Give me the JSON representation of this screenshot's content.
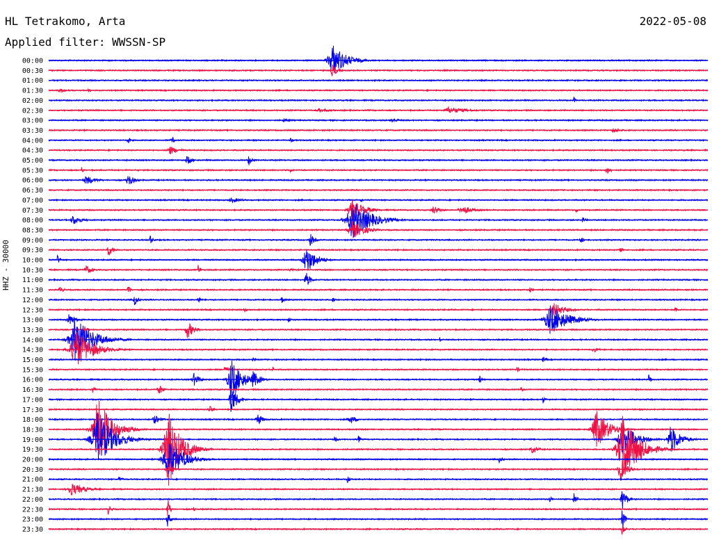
{
  "header": {
    "station": "HL Tetrakomo, Arta",
    "filter": "Applied filter: WWSSN-SP",
    "date": "2022-05-08"
  },
  "chart_data": {
    "type": "helicorder",
    "ylabel": "HHZ - 30000",
    "row_labels": [
      "00:00",
      "00:30",
      "01:00",
      "01:30",
      "02:00",
      "02:30",
      "03:00",
      "03:30",
      "04:00",
      "04:30",
      "05:00",
      "05:30",
      "06:00",
      "06:30",
      "07:00",
      "07:30",
      "08:00",
      "08:30",
      "09:00",
      "09:30",
      "10:00",
      "10:30",
      "11:00",
      "11:30",
      "12:00",
      "12:30",
      "13:00",
      "13:30",
      "14:00",
      "14:30",
      "15:00",
      "15:30",
      "16:00",
      "16:30",
      "17:00",
      "17:30",
      "18:00",
      "18:30",
      "19:00",
      "19:30",
      "20:00",
      "20:30",
      "21:00",
      "21:30",
      "22:00",
      "22:30",
      "23:00",
      "23:30"
    ],
    "colors": {
      "even_rows": "#0000ee",
      "odd_rows": "#ee1144"
    },
    "x_range_minutes": [
      0,
      30
    ],
    "events": [
      {
        "row": 0,
        "t": 12.9,
        "amp": 26,
        "dur": 1.6
      },
      {
        "row": 1,
        "t": 12.9,
        "amp": 10,
        "dur": 0.6
      },
      {
        "row": 3,
        "t": 0.5,
        "amp": 5,
        "dur": 0.6
      },
      {
        "row": 3,
        "t": 1.8,
        "amp": 3,
        "dur": 0.4
      },
      {
        "row": 4,
        "t": 23.9,
        "amp": 6,
        "dur": 0.2
      },
      {
        "row": 5,
        "t": 18.2,
        "amp": 5,
        "dur": 2.5
      },
      {
        "row": 5,
        "t": 12.3,
        "amp": 3,
        "dur": 2.0
      },
      {
        "row": 6,
        "t": 15.6,
        "amp": 4,
        "dur": 1.0
      },
      {
        "row": 6,
        "t": 10.7,
        "amp": 3,
        "dur": 1.0
      },
      {
        "row": 7,
        "t": 25.7,
        "amp": 4,
        "dur": 1.0
      },
      {
        "row": 8,
        "t": 3.6,
        "amp": 6,
        "dur": 0.4
      },
      {
        "row": 8,
        "t": 5.6,
        "amp": 6,
        "dur": 0.4
      },
      {
        "row": 8,
        "t": 11.0,
        "amp": 5,
        "dur": 0.3
      },
      {
        "row": 9,
        "t": 5.5,
        "amp": 7,
        "dur": 1.0
      },
      {
        "row": 10,
        "t": 6.3,
        "amp": 8,
        "dur": 0.6
      },
      {
        "row": 10,
        "t": 9.1,
        "amp": 9,
        "dur": 0.4
      },
      {
        "row": 11,
        "t": 1.5,
        "amp": 5,
        "dur": 0.3
      },
      {
        "row": 11,
        "t": 11.0,
        "amp": 4,
        "dur": 0.3
      },
      {
        "row": 11,
        "t": 25.4,
        "amp": 7,
        "dur": 0.5
      },
      {
        "row": 12,
        "t": 1.7,
        "amp": 7,
        "dur": 1.2
      },
      {
        "row": 12,
        "t": 3.6,
        "amp": 10,
        "dur": 0.7
      },
      {
        "row": 14,
        "t": 8.3,
        "amp": 4,
        "dur": 1.4
      },
      {
        "row": 14,
        "t": 14.2,
        "amp": 4,
        "dur": 0.3
      },
      {
        "row": 15,
        "t": 13.8,
        "amp": 16,
        "dur": 1.5
      },
      {
        "row": 15,
        "t": 17.5,
        "amp": 6,
        "dur": 1.0
      },
      {
        "row": 15,
        "t": 18.8,
        "amp": 7,
        "dur": 1.4
      },
      {
        "row": 15,
        "t": 24.0,
        "amp": 5,
        "dur": 0.3
      },
      {
        "row": 16,
        "t": 13.8,
        "amp": 30,
        "dur": 2.2
      },
      {
        "row": 16,
        "t": 1.1,
        "amp": 8,
        "dur": 1.0
      },
      {
        "row": 16,
        "t": 24.3,
        "amp": 5,
        "dur": 0.4
      },
      {
        "row": 17,
        "t": 13.8,
        "amp": 14,
        "dur": 1.5
      },
      {
        "row": 18,
        "t": 4.6,
        "amp": 8,
        "dur": 0.4
      },
      {
        "row": 18,
        "t": 11.9,
        "amp": 10,
        "dur": 0.5
      },
      {
        "row": 18,
        "t": 24.2,
        "amp": 6,
        "dur": 0.4
      },
      {
        "row": 19,
        "t": 2.7,
        "amp": 10,
        "dur": 0.6
      },
      {
        "row": 19,
        "t": 26.0,
        "amp": 6,
        "dur": 0.3
      },
      {
        "row": 20,
        "t": 11.7,
        "amp": 22,
        "dur": 1.2
      },
      {
        "row": 20,
        "t": 0.4,
        "amp": 8,
        "dur": 0.3
      },
      {
        "row": 21,
        "t": 1.7,
        "amp": 7,
        "dur": 0.8
      },
      {
        "row": 21,
        "t": 6.8,
        "amp": 8,
        "dur": 0.3
      },
      {
        "row": 21,
        "t": 11.0,
        "amp": 5,
        "dur": 0.3
      },
      {
        "row": 22,
        "t": 11.7,
        "amp": 14,
        "dur": 0.5
      },
      {
        "row": 23,
        "t": 0.5,
        "amp": 5,
        "dur": 0.6
      },
      {
        "row": 23,
        "t": 3.6,
        "amp": 10,
        "dur": 0.3
      },
      {
        "row": 23,
        "t": 21.9,
        "amp": 6,
        "dur": 0.3
      },
      {
        "row": 24,
        "t": 3.9,
        "amp": 10,
        "dur": 0.4
      },
      {
        "row": 24,
        "t": 6.8,
        "amp": 6,
        "dur": 0.4
      },
      {
        "row": 24,
        "t": 10.6,
        "amp": 6,
        "dur": 0.4
      },
      {
        "row": 24,
        "t": 12.9,
        "amp": 5,
        "dur": 0.3
      },
      {
        "row": 25,
        "t": 8.9,
        "amp": 5,
        "dur": 0.3
      },
      {
        "row": 25,
        "t": 23.0,
        "amp": 10,
        "dur": 1.4
      },
      {
        "row": 25,
        "t": 28.5,
        "amp": 5,
        "dur": 0.4
      },
      {
        "row": 26,
        "t": 0.9,
        "amp": 9,
        "dur": 0.9
      },
      {
        "row": 26,
        "t": 22.8,
        "amp": 22,
        "dur": 2.2
      },
      {
        "row": 26,
        "t": 10.9,
        "amp": 6,
        "dur": 0.3
      },
      {
        "row": 27,
        "t": 6.3,
        "amp": 14,
        "dur": 0.8
      },
      {
        "row": 27,
        "t": 1.6,
        "amp": 5,
        "dur": 0.6
      },
      {
        "row": 28,
        "t": 1.2,
        "amp": 34,
        "dur": 2.2
      },
      {
        "row": 28,
        "t": 17.8,
        "amp": 6,
        "dur": 0.2
      },
      {
        "row": 29,
        "t": 1.2,
        "amp": 30,
        "dur": 2.0
      },
      {
        "row": 29,
        "t": 24.8,
        "amp": 4,
        "dur": 0.8
      },
      {
        "row": 30,
        "t": 9.3,
        "amp": 5,
        "dur": 0.3
      },
      {
        "row": 30,
        "t": 22.5,
        "amp": 5,
        "dur": 0.4
      },
      {
        "row": 31,
        "t": 8.0,
        "amp": 8,
        "dur": 0.4
      },
      {
        "row": 31,
        "t": 10.2,
        "amp": 5,
        "dur": 0.3
      },
      {
        "row": 31,
        "t": 21.3,
        "amp": 5,
        "dur": 0.4
      },
      {
        "row": 32,
        "t": 6.6,
        "amp": 10,
        "dur": 0.7
      },
      {
        "row": 32,
        "t": 8.3,
        "amp": 30,
        "dur": 1.4
      },
      {
        "row": 32,
        "t": 9.3,
        "amp": 14,
        "dur": 0.8
      },
      {
        "row": 32,
        "t": 19.6,
        "amp": 7,
        "dur": 0.3
      },
      {
        "row": 32,
        "t": 27.3,
        "amp": 9,
        "dur": 0.3
      },
      {
        "row": 33,
        "t": 5.0,
        "amp": 10,
        "dur": 0.5
      },
      {
        "row": 33,
        "t": 2.0,
        "amp": 5,
        "dur": 0.3
      },
      {
        "row": 33,
        "t": 21.5,
        "amp": 5,
        "dur": 0.3
      },
      {
        "row": 34,
        "t": 8.3,
        "amp": 24,
        "dur": 0.7
      },
      {
        "row": 34,
        "t": 22.5,
        "amp": 6,
        "dur": 0.3
      },
      {
        "row": 35,
        "t": 7.3,
        "amp": 7,
        "dur": 0.5
      },
      {
        "row": 36,
        "t": 4.8,
        "amp": 7,
        "dur": 0.8
      },
      {
        "row": 36,
        "t": 9.5,
        "amp": 10,
        "dur": 0.6
      },
      {
        "row": 36,
        "t": 13.7,
        "amp": 6,
        "dur": 1.0
      },
      {
        "row": 37,
        "t": 2.2,
        "amp": 50,
        "dur": 1.7
      },
      {
        "row": 37,
        "t": 24.9,
        "amp": 30,
        "dur": 1.5
      },
      {
        "row": 38,
        "t": 2.2,
        "amp": 40,
        "dur": 2.0
      },
      {
        "row": 38,
        "t": 26.1,
        "amp": 25,
        "dur": 1.6
      },
      {
        "row": 38,
        "t": 28.3,
        "amp": 22,
        "dur": 1.2
      },
      {
        "row": 38,
        "t": 13.0,
        "amp": 6,
        "dur": 0.4
      },
      {
        "row": 38,
        "t": 14.1,
        "amp": 6,
        "dur": 0.3
      },
      {
        "row": 39,
        "t": 5.4,
        "amp": 60,
        "dur": 1.6
      },
      {
        "row": 39,
        "t": 26.1,
        "amp": 55,
        "dur": 1.8
      },
      {
        "row": 39,
        "t": 22.0,
        "amp": 6,
        "dur": 0.8
      },
      {
        "row": 40,
        "t": 5.4,
        "amp": 32,
        "dur": 1.8
      },
      {
        "row": 40,
        "t": 20.5,
        "amp": 5,
        "dur": 0.5
      },
      {
        "row": 41,
        "t": 5.4,
        "amp": 14,
        "dur": 0.6
      },
      {
        "row": 41,
        "t": 26.0,
        "amp": 20,
        "dur": 0.8
      },
      {
        "row": 42,
        "t": 13.6,
        "amp": 6,
        "dur": 0.4
      },
      {
        "row": 42,
        "t": 3.2,
        "amp": 5,
        "dur": 0.4
      },
      {
        "row": 43,
        "t": 1.0,
        "amp": 10,
        "dur": 1.7
      },
      {
        "row": 44,
        "t": 23.9,
        "amp": 10,
        "dur": 0.4
      },
      {
        "row": 44,
        "t": 22.8,
        "amp": 6,
        "dur": 0.3
      },
      {
        "row": 44,
        "t": 26.1,
        "amp": 20,
        "dur": 0.5
      },
      {
        "row": 45,
        "t": 2.7,
        "amp": 8,
        "dur": 0.4
      },
      {
        "row": 45,
        "t": 6.6,
        "amp": 4,
        "dur": 0.3
      },
      {
        "row": 45,
        "t": 5.4,
        "amp": 20,
        "dur": 0.3
      },
      {
        "row": 46,
        "t": 5.4,
        "amp": 16,
        "dur": 0.3
      },
      {
        "row": 46,
        "t": 26.1,
        "amp": 20,
        "dur": 0.3
      },
      {
        "row": 47,
        "t": 26.1,
        "amp": 12,
        "dur": 0.3
      }
    ]
  }
}
